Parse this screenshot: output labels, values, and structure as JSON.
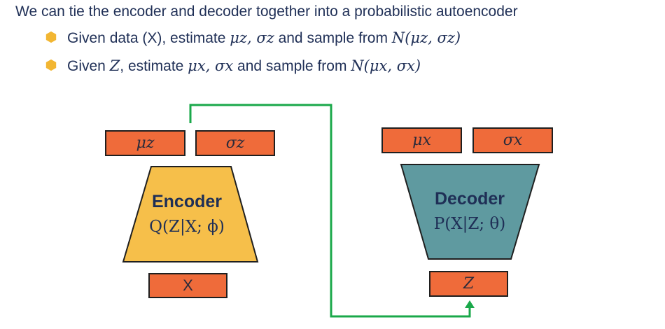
{
  "header": {
    "title": "We can tie the encoder and decoder together into a probabilistic autoencoder"
  },
  "bullets": [
    {
      "prefix": "Given data (X), estimate ",
      "params": "μz, σz",
      "mid": " and sample from ",
      "dist": "N(μz, σz)"
    },
    {
      "prefix": "Given ",
      "given_var": "Z",
      "mid1": ", estimate ",
      "params": "μx, σx",
      "mid2": " and sample from ",
      "dist": "N(μx, σx)"
    }
  ],
  "encoder": {
    "title": "Encoder",
    "formula": "Q(Z|X; ϕ)",
    "input_label": "X",
    "outputs": {
      "mu": "μz",
      "sigma": "σz"
    }
  },
  "decoder": {
    "title": "Decoder",
    "formula": "P(X|Z; θ)",
    "input_label": "Z",
    "outputs": {
      "mu": "μx",
      "sigma": "σx"
    }
  },
  "colors": {
    "text": "#1f2f56",
    "box_fill": "#ef6b3a",
    "encoder_fill": "#f6bf4a",
    "decoder_fill": "#5f9aa0",
    "connector": "#1aa84a",
    "bullet": "#f2b632"
  },
  "icons": {
    "bullet": "hexagon-bullet-icon",
    "arrow": "arrow-up-icon"
  }
}
